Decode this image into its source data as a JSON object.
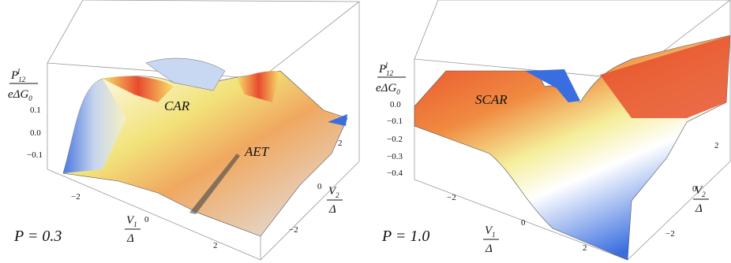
{
  "panels": [
    {
      "z_label": {
        "numerator": {
          "base": "P",
          "sub": "12",
          "sup": "I"
        },
        "denominator": {
          "base": "eΔG",
          "sub": "0"
        }
      },
      "z_ticks": [
        "0.1",
        "0.0",
        "−0.1"
      ],
      "x_label": {
        "numerator": {
          "base": "V",
          "sub": "1"
        },
        "denominator": "Δ"
      },
      "x_ticks": [
        "−2",
        "0",
        "2"
      ],
      "y_label": {
        "numerator": {
          "base": "V",
          "sub": "2"
        },
        "denominator": "Δ"
      },
      "y_ticks": [
        "2",
        "0",
        "−2"
      ],
      "annotations": [
        "CAR",
        "AET"
      ],
      "parameter": "P = 0.3"
    },
    {
      "z_label": {
        "numerator": {
          "base": "P",
          "sub": "12",
          "sup": "I"
        },
        "denominator": {
          "base": "eΔG",
          "sub": "0"
        }
      },
      "z_ticks": [
        "0.0",
        "−0.1",
        "−0.2",
        "−0.3",
        "−0.4"
      ],
      "x_label": {
        "numerator": {
          "base": "V",
          "sub": "1"
        },
        "denominator": "Δ"
      },
      "x_ticks": [
        "−2",
        "0",
        "2"
      ],
      "y_label": {
        "numerator": {
          "base": "V",
          "sub": "2"
        },
        "denominator": "Δ"
      },
      "y_ticks": [
        "2",
        "0",
        "−2"
      ],
      "annotations": [
        "SCAR"
      ],
      "parameter": "P = 1.0"
    }
  ]
}
